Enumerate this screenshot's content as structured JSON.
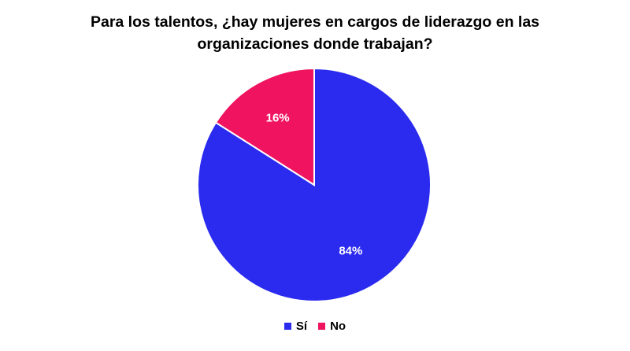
{
  "chart_data": {
    "type": "pie",
    "title_lines": [
      "Para los talentos, ¿hay mujeres en cargos de liderazgo en las",
      "organizaciones donde trabajan?"
    ],
    "slices": [
      {
        "label": "Sí",
        "value": 84,
        "data_label": "84%",
        "color": "#2b2bf0"
      },
      {
        "label": "No",
        "value": 16,
        "data_label": "16%",
        "color": "#f0135f"
      }
    ],
    "legend_position": "bottom"
  }
}
